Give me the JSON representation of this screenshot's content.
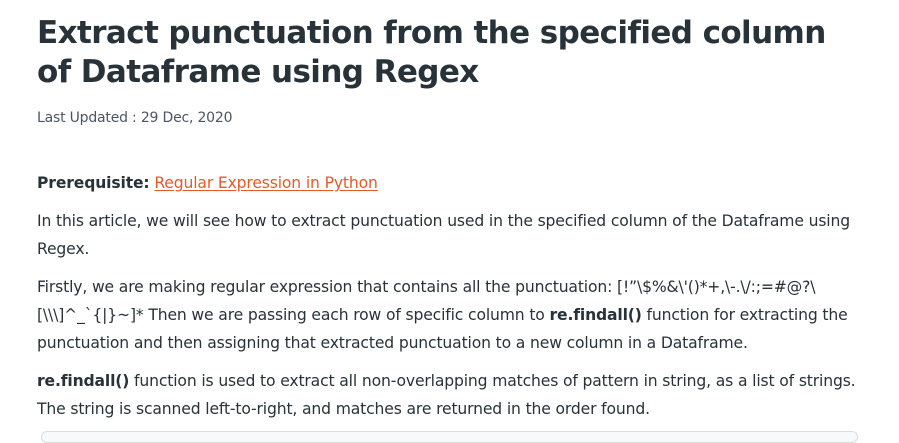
{
  "article": {
    "title": "Extract punctuation from the specified column of Dataframe using Regex",
    "updated": "Last Updated : 29 Dec, 2020",
    "prerequisite_label": "Prerequisite:",
    "prerequisite_link": "Regular Expression in Python",
    "intro": "In this article, we will see how to extract punctuation used in the specified column of the Dataframe using Regex.",
    "first_part1": "Firstly, we are making regular expression that contains all the punctuation: [!”\\$%&\\'()*+,\\-.\\/:;=#@?\\[\\\\\\]^_`{|}~]* Then we are passing each row of specific column to ",
    "first_code": "re.findall()",
    "first_part2": " function for extracting the punctuation and then assigning that extracted punctuation to a new column in a Dataframe.",
    "findall_code": "re.findall()",
    "findall_text": " function is used to extract all non-overlapping matches of pattern in string, as a list of strings. The string is scanned left-to-right, and matches are returned in the order found."
  }
}
